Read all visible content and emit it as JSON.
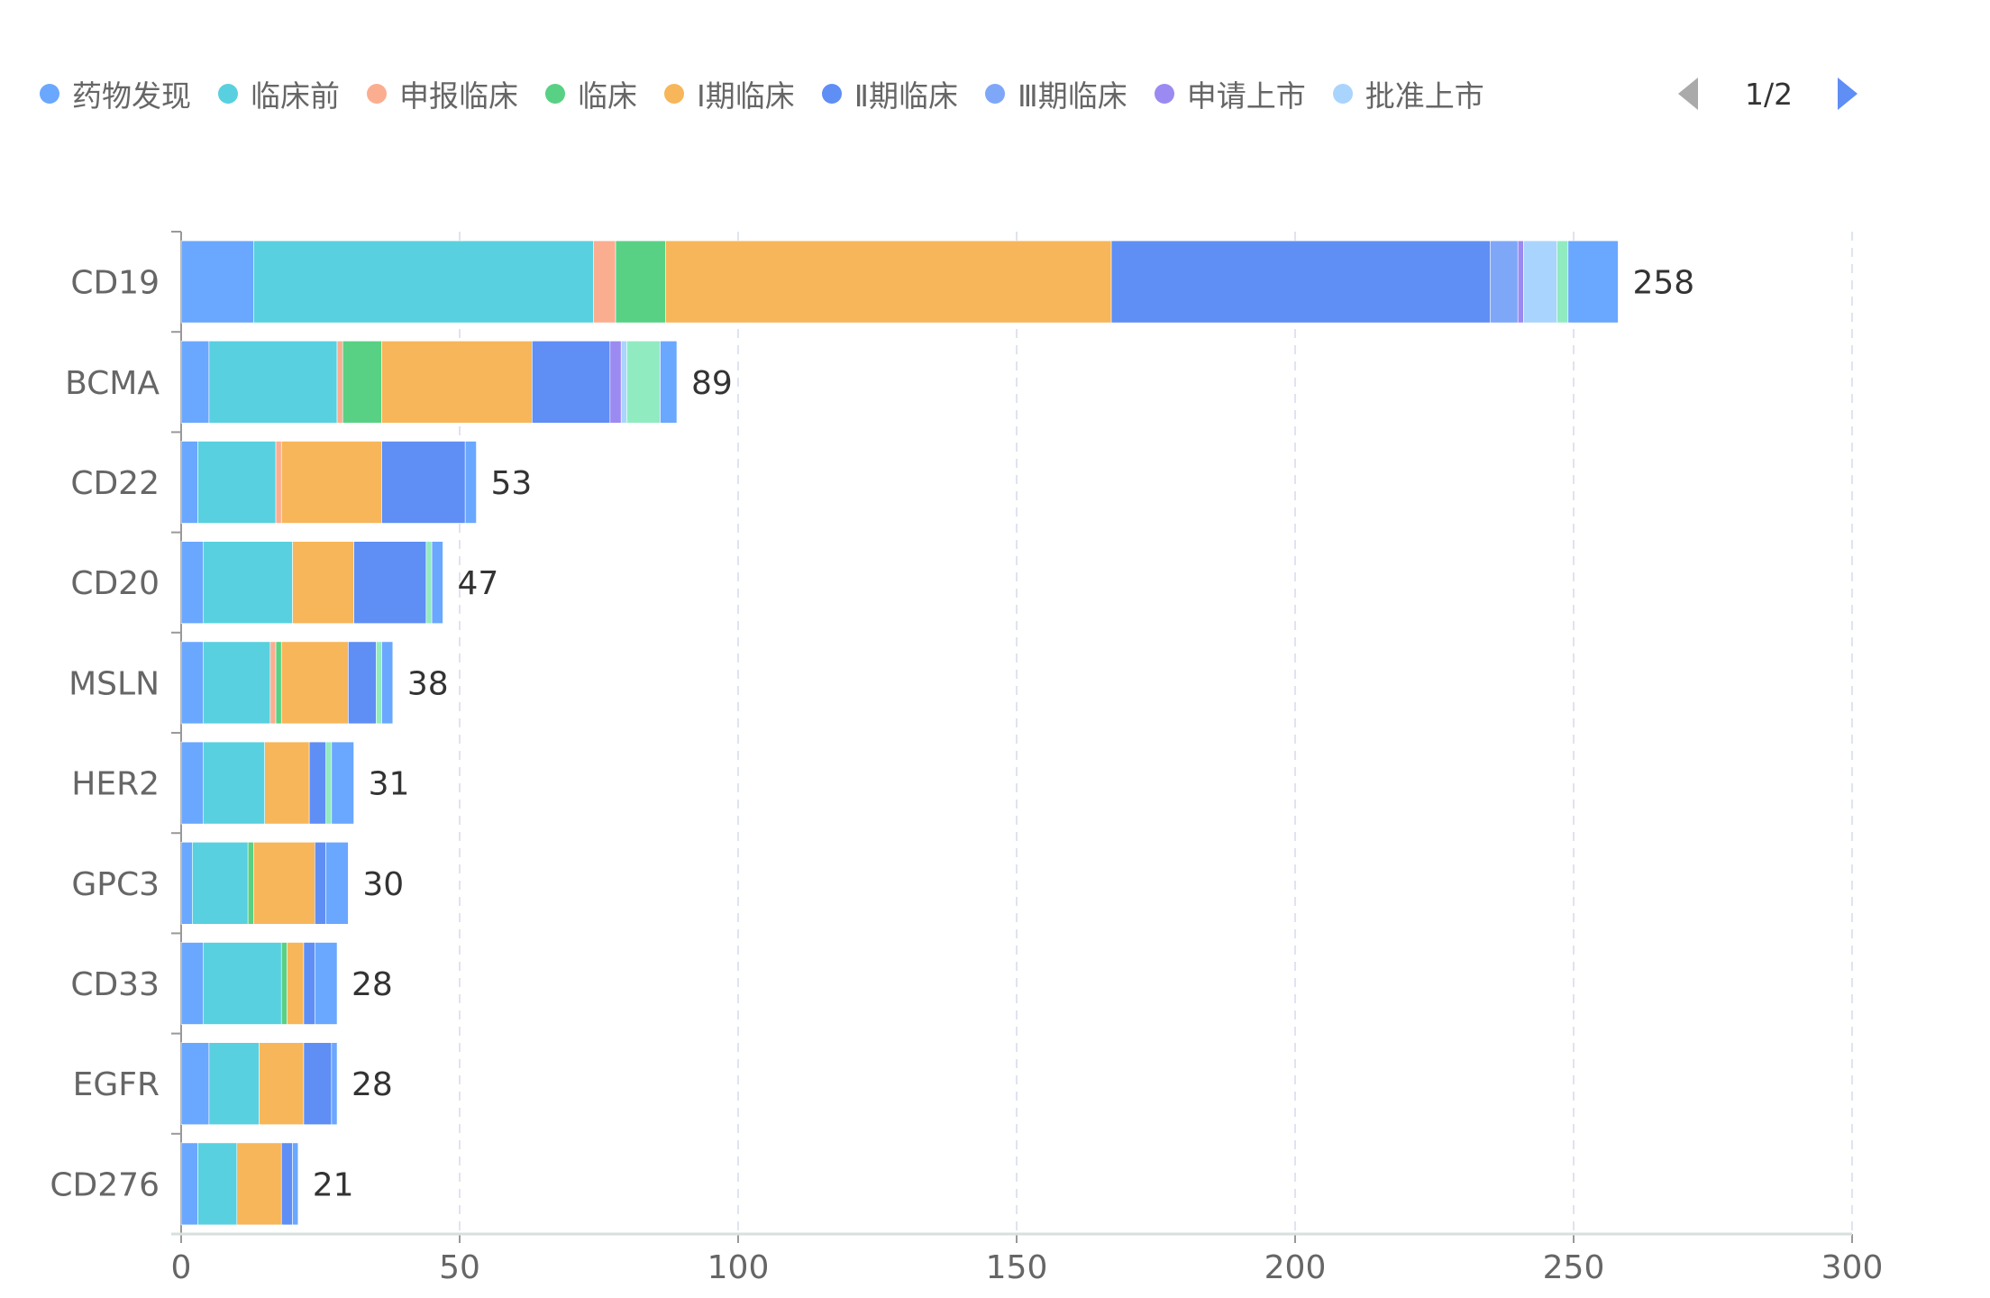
{
  "legend": {
    "items": [
      "药物发现",
      "临床前",
      "申报临床",
      "临床",
      "Ⅰ期临床",
      "Ⅱ期临床",
      "Ⅲ期临床",
      "申请上市",
      "批准上市"
    ],
    "page": "1/2"
  },
  "chart_data": {
    "type": "bar",
    "orientation": "horizontal",
    "stacked": true,
    "categories": [
      "CD19",
      "BCMA",
      "CD22",
      "CD20",
      "MSLN",
      "HER2",
      "GPC3",
      "CD33",
      "EGFR",
      "CD276"
    ],
    "totals": [
      258,
      89,
      53,
      47,
      38,
      31,
      30,
      28,
      28,
      21
    ],
    "series": [
      {
        "name": "药物发现",
        "color": "#6AA7FF",
        "values": [
          13,
          5,
          3,
          4,
          4,
          4,
          2,
          4,
          5,
          3
        ]
      },
      {
        "name": "临床前",
        "color": "#58D0DF",
        "values": [
          61,
          23,
          14,
          16,
          12,
          11,
          10,
          14,
          9,
          7
        ]
      },
      {
        "name": "申报临床",
        "color": "#FBAD90",
        "values": [
          4,
          1,
          1,
          0,
          1,
          0,
          0,
          0,
          0,
          0
        ]
      },
      {
        "name": "临床",
        "color": "#58D184",
        "values": [
          9,
          7,
          0,
          0,
          1,
          0,
          1,
          1,
          0,
          0
        ]
      },
      {
        "name": "Ⅰ期临床",
        "color": "#F7B65A",
        "values": [
          80,
          27,
          18,
          11,
          12,
          8,
          11,
          3,
          8,
          8
        ]
      },
      {
        "name": "Ⅱ期临床",
        "color": "#5F8EF4",
        "values": [
          68,
          14,
          15,
          13,
          5,
          3,
          2,
          2,
          5,
          2
        ]
      },
      {
        "name": "Ⅲ期临床",
        "color": "#7EA7F8",
        "values": [
          5,
          0,
          0,
          0,
          0,
          0,
          0,
          0,
          0,
          0
        ]
      },
      {
        "name": "申请上市",
        "color": "#9B8AF1",
        "values": [
          1,
          2,
          0,
          0,
          0,
          0,
          0,
          0,
          0,
          0
        ]
      },
      {
        "name": "批准上市",
        "color": "#A9D4FD",
        "values": [
          6,
          1,
          0,
          0,
          0,
          0,
          0,
          0,
          0,
          0
        ]
      },
      {
        "name": "",
        "color": "#91EBC1",
        "values": [
          2,
          6,
          0,
          1,
          1,
          1,
          0,
          0,
          0,
          0
        ]
      },
      {
        "name": "",
        "color": "#6AA7FF",
        "values": [
          9,
          3,
          2,
          2,
          2,
          4,
          4,
          4,
          1,
          1
        ]
      }
    ],
    "xlim": [
      0,
      300
    ],
    "xticks": [
      "0",
      "50",
      "100",
      "150",
      "200",
      "250",
      "300"
    ],
    "grid": true,
    "legend_position": "top"
  }
}
